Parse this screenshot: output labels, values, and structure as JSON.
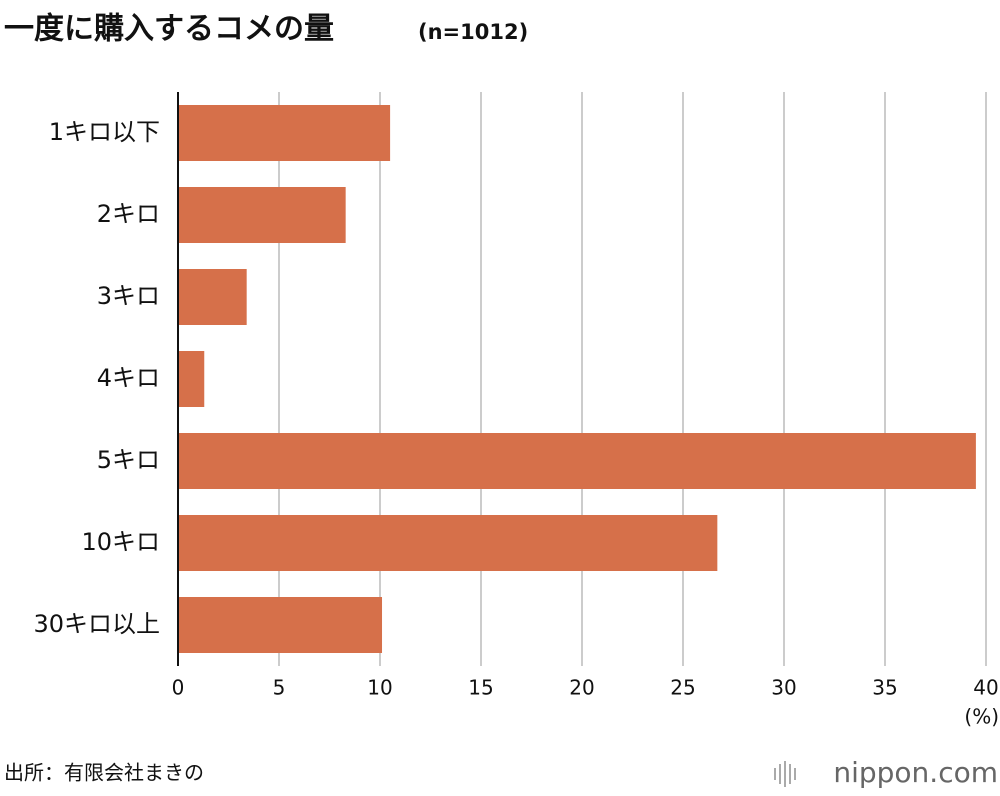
{
  "chart_data": {
    "type": "bar",
    "orientation": "horizontal",
    "title": "一度に購入するコメの量",
    "subtitle": "(n=1012)",
    "categories": [
      "1キロ以下",
      "2キロ",
      "3キロ",
      "4キロ",
      "5キロ",
      "10キロ",
      "30キロ以上"
    ],
    "values": [
      10.5,
      8.3,
      3.4,
      1.3,
      39.5,
      26.7,
      10.1
    ],
    "color": "#d6704a",
    "xlim": [
      0,
      40
    ],
    "xticks": [
      0,
      5,
      10,
      15,
      20,
      25,
      30,
      35,
      40
    ],
    "x_label": "(%)",
    "grid": true,
    "source": "出所：有限会社まきの",
    "brand": "nippon.com"
  }
}
